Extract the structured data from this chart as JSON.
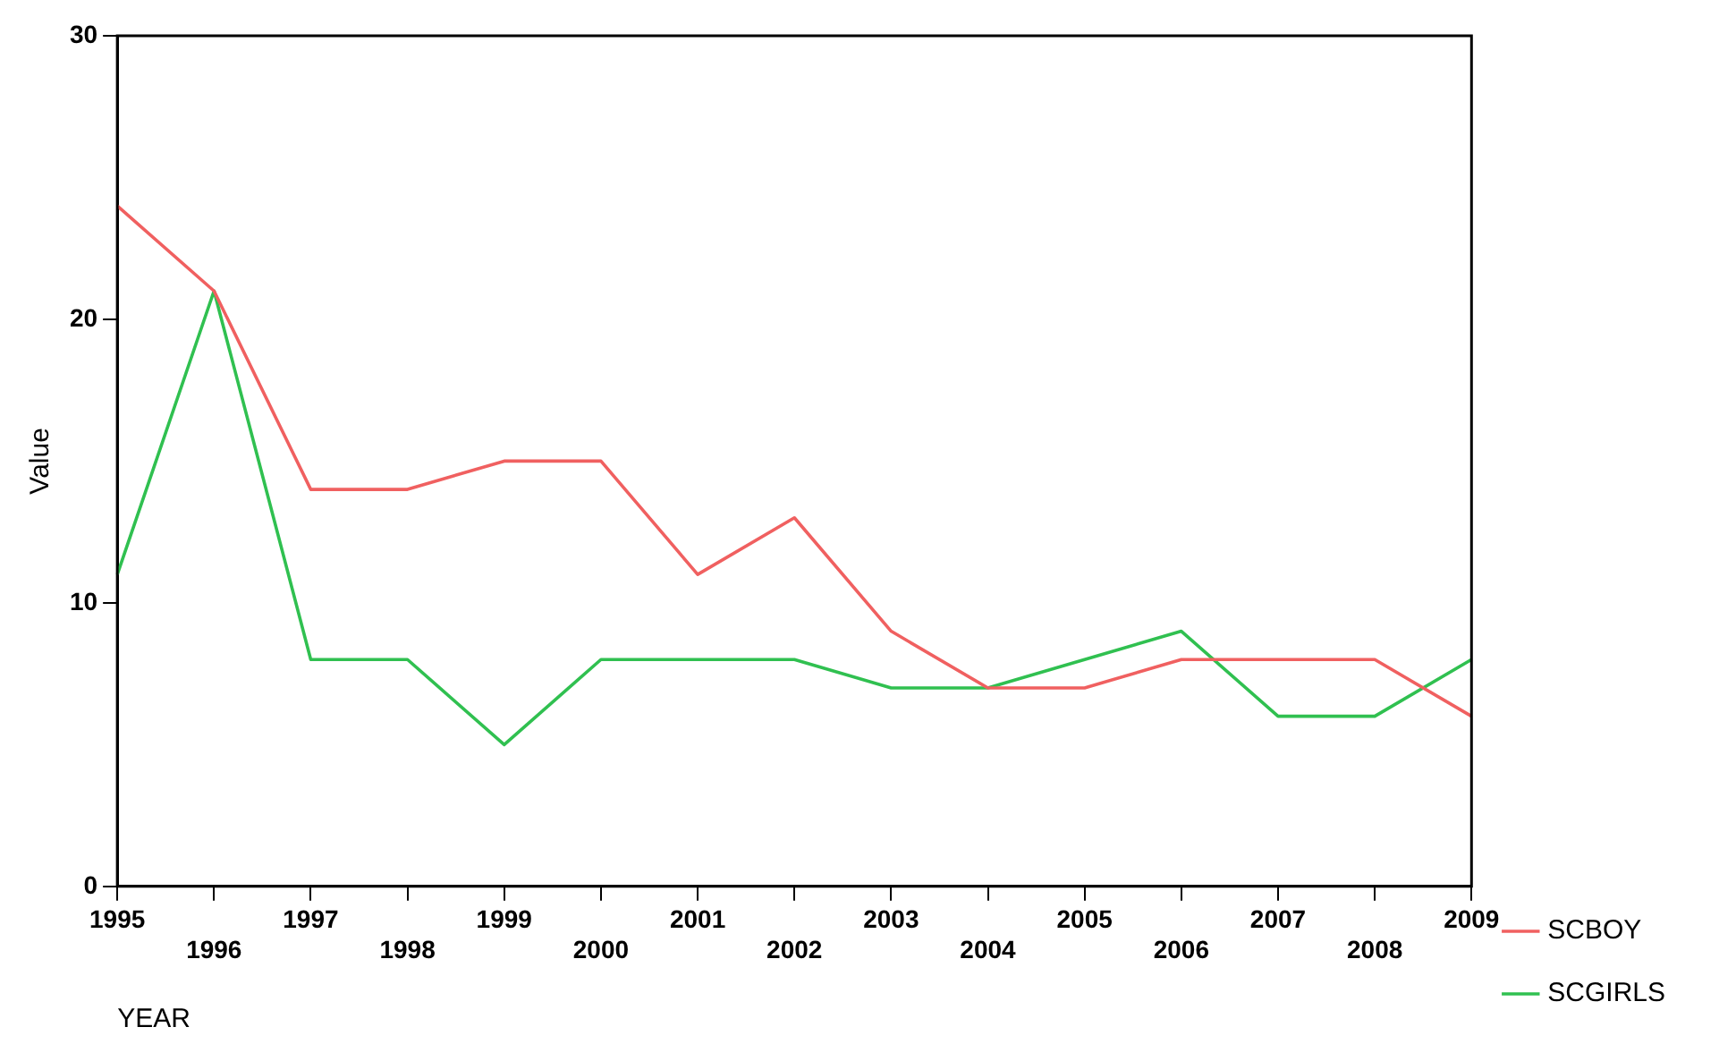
{
  "chart_data": {
    "type": "line",
    "xlabel": "YEAR",
    "ylabel": "Value",
    "categories": [
      "1995",
      "1996",
      "1997",
      "1998",
      "1999",
      "2000",
      "2001",
      "2002",
      "2003",
      "2004",
      "2005",
      "2006",
      "2007",
      "2008",
      "2009"
    ],
    "series": [
      {
        "name": "SCBOY",
        "color": "#f06060",
        "values": [
          24,
          21,
          14,
          14,
          15,
          15,
          11,
          13,
          9,
          7,
          7,
          8,
          8,
          8,
          6
        ]
      },
      {
        "name": "SCGIRLS",
        "color": "#30c050",
        "values": [
          11,
          21,
          8,
          8,
          5,
          8,
          8,
          8,
          7,
          7,
          8,
          9,
          6,
          6,
          8
        ]
      }
    ],
    "ylim": [
      0,
      30
    ],
    "yticks": [
      0,
      10,
      20,
      30
    ],
    "grid": false,
    "legend": "right",
    "marker": "none",
    "line_style": "solid"
  }
}
